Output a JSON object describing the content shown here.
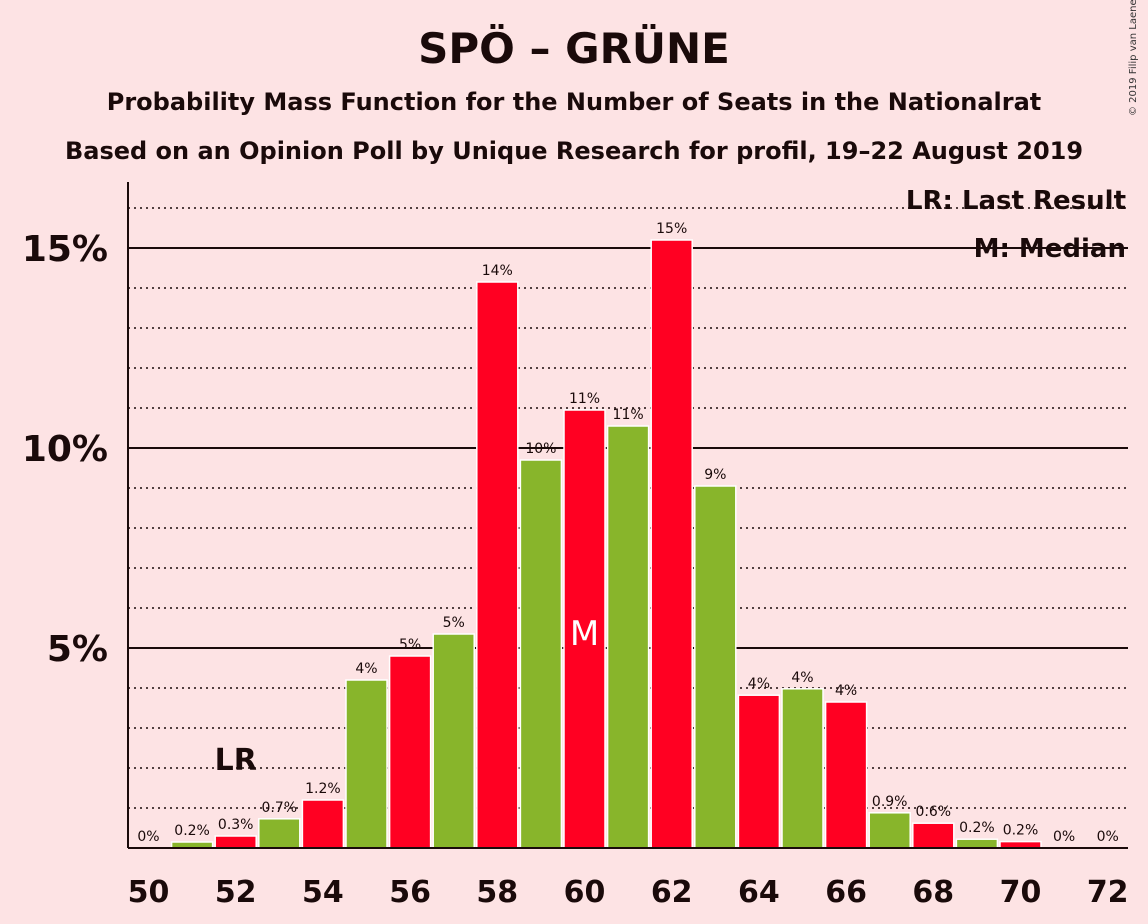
{
  "chart_data": {
    "type": "bar",
    "title": "SPÖ – GRÜNE",
    "subtitle": "Probability Mass Function for the Number of Seats in the Nationalrat",
    "subtitle2": "Based on an Opinion Poll by Unique Research for profil, 19–22 August 2019",
    "copyright": "© 2019 Filip van Laenen",
    "x": [
      50,
      51,
      52,
      53,
      54,
      55,
      56,
      57,
      58,
      59,
      60,
      61,
      62,
      63,
      64,
      65,
      66,
      67,
      68,
      69,
      70,
      71,
      72
    ],
    "values": [
      0,
      0.15,
      0.3,
      0.73,
      1.2,
      4.2,
      4.8,
      5.35,
      14.15,
      9.7,
      10.95,
      10.55,
      15.2,
      9.05,
      3.82,
      3.98,
      3.65,
      0.88,
      0.62,
      0.22,
      0.16,
      0,
      0
    ],
    "value_labels": [
      "0%",
      "0.2%",
      "0.3%",
      "0.7%",
      "1.2%",
      "4%",
      "5%",
      "5%",
      "14%",
      "10%",
      "11%",
      "11%",
      "15%",
      "9%",
      "4%",
      "4%",
      "4%",
      "0.9%",
      "0.6%",
      "0.2%",
      "0.2%",
      "0%",
      "0%"
    ],
    "x_tick_labels": [
      "50",
      "52",
      "54",
      "56",
      "58",
      "60",
      "62",
      "64",
      "66",
      "68",
      "70",
      "72"
    ],
    "y_tick_labels": [
      "5%",
      "10%",
      "15%"
    ],
    "y_ticks": [
      5,
      10,
      15
    ],
    "y_gridlines_minor": [
      1,
      2,
      3,
      4,
      6,
      7,
      8,
      9,
      11,
      12,
      13,
      14,
      16
    ],
    "ylim": [
      0,
      16.6
    ],
    "grid": true,
    "colors": {
      "even": "#ff0022",
      "odd": "#88b52b",
      "background": "#fde3e4"
    },
    "last_result": {
      "x": 52,
      "label": "LR"
    },
    "median": {
      "x": 60,
      "label": "M"
    },
    "legend": {
      "placement": "top-right",
      "items": [
        "LR: Last Result",
        "M: Median"
      ]
    }
  }
}
